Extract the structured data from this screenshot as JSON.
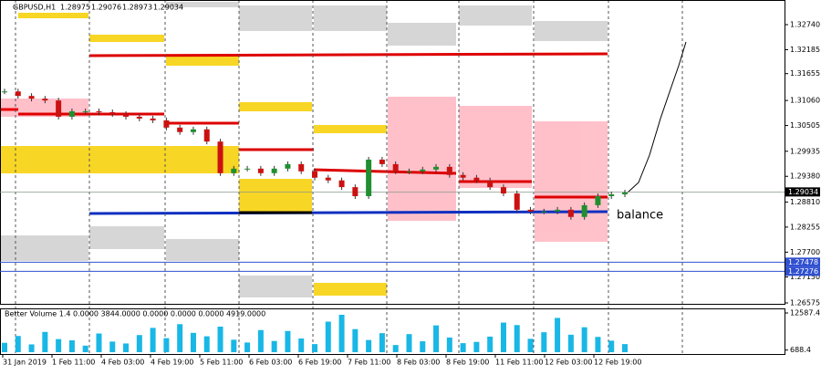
{
  "header": {
    "symbol": "GBPUSD,H1",
    "ohlc": [
      "1.28975",
      "1.29076",
      "1.28973",
      "1.29034"
    ]
  },
  "annotation": "balance",
  "price_chart": {
    "close": [
      1.3126,
      1.3116,
      1.311,
      1.3106,
      1.307,
      1.3082,
      1.3082,
      1.308,
      1.3076,
      1.307,
      1.3066,
      1.3062,
      1.3046,
      1.3036,
      1.3042,
      1.3015,
      1.2945,
      1.2955,
      1.2955,
      1.2945,
      1.2955,
      1.2965,
      1.2949,
      1.2935,
      1.2929,
      1.2914,
      1.2894,
      1.2975,
      1.2965,
      1.2949,
      1.2949,
      1.2953,
      1.2959,
      1.2941,
      1.2935,
      1.2929,
      1.2914,
      1.29,
      1.2864,
      1.286,
      1.286,
      1.2864,
      1.2848,
      1.2874,
      1.2894,
      1.2898,
      1.2902
    ],
    "up_color": "#1f8f2f",
    "down_color": "#cc1111",
    "ylim": [
      1.26555,
      1.33286
    ],
    "yticks": [
      {
        "value": 1.3274,
        "label": "1.32740"
      },
      {
        "value": 1.32185,
        "label": "1.32185"
      },
      {
        "value": 1.31655,
        "label": "1.31655"
      },
      {
        "value": 1.3106,
        "label": "1.31060"
      },
      {
        "value": 1.30505,
        "label": "1.30505"
      },
      {
        "value": 1.29935,
        "label": "1.29935"
      },
      {
        "value": 1.2938,
        "label": "1.29380"
      },
      {
        "value": 1.2881,
        "label": "1.28810"
      },
      {
        "value": 1.28255,
        "label": "1.28255"
      },
      {
        "value": 1.277,
        "label": "1.27700"
      },
      {
        "value": 1.2715,
        "label": "1.27150"
      },
      {
        "value": 1.26575,
        "label": "1.26575"
      }
    ],
    "current_price": {
      "value": 1.29034,
      "label": "1.29034"
    },
    "levels": [
      {
        "value": 1.27478,
        "label": "1.27478"
      },
      {
        "value": 1.27276,
        "label": "1.27276"
      }
    ]
  },
  "volume": {
    "title": "Better Volume 1.4 0.0000 3844.0000 0.0000 0.0000 0.0000 4919.0000",
    "color": "#19b7e6",
    "values": [
      3000,
      5200,
      2500,
      6500,
      4200,
      3800,
      2100,
      6000,
      3400,
      2800,
      5500,
      7800,
      4500,
      9000,
      6200,
      5100,
      8200,
      4000,
      3100,
      7100,
      3600,
      6800,
      4400,
      2600,
      9800,
      12000,
      7400,
      3900,
      6100,
      2300,
      5800,
      3500,
      8600,
      4700,
      2900,
      3300,
      5000,
      9500,
      8700,
      4300,
      6400,
      11000,
      5600,
      8000,
      4900,
      3700,
      2600
    ],
    "ylim": [
      0,
      12587.4
    ],
    "yticks": [
      {
        "value": 12587.4,
        "label": "12587.4"
      },
      {
        "value": 688.4,
        "label": "688.4"
      }
    ]
  },
  "time_labels": [
    "31 Jan 2019",
    "1 Feb 11:00",
    "4 Feb 03:00",
    "4 Feb 19:00",
    "5 Feb 11:00",
    "6 Feb 03:00",
    "6 Feb 19:00",
    "7 Feb 11:00",
    "8 Feb 03:00",
    "8 Feb 19:00",
    "11 Feb 11:00",
    "12 Feb 03:00",
    "12 Feb 19:00"
  ]
}
